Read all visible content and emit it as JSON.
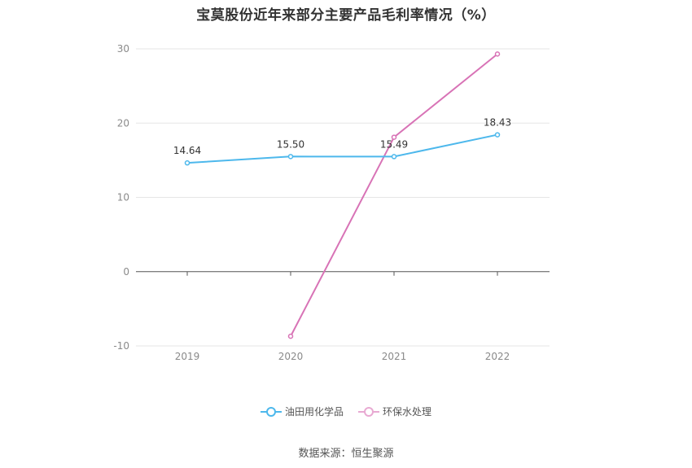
{
  "chart_data": {
    "type": "line",
    "title": "宝莫股份近年来部分主要产品毛利率情况（%）",
    "categories": [
      "2019",
      "2020",
      "2021",
      "2022"
    ],
    "ylim": [
      -10,
      30
    ],
    "yticks": [
      -10,
      0,
      10,
      20,
      30
    ],
    "grid": true,
    "legend_position": "bottom",
    "series": [
      {
        "name": "油田用化学品",
        "color": "#4db8ec",
        "values": [
          14.64,
          15.5,
          15.49,
          18.43
        ],
        "labels": [
          "14.64",
          "15.50",
          "15.49",
          "18.43"
        ]
      },
      {
        "name": "环保水处理",
        "color": "#d873b6",
        "values": [
          null,
          -8.7,
          18.1,
          29.3
        ],
        "labels": []
      }
    ]
  },
  "footer": {
    "source": "数据来源：恒生聚源"
  }
}
